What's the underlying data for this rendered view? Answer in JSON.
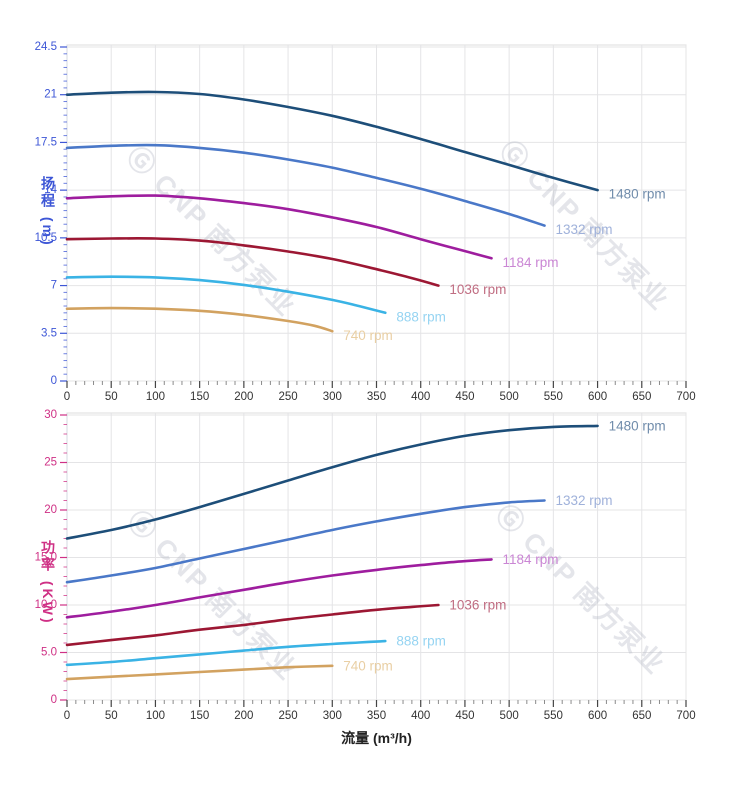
{
  "watermark": {
    "logo": "Ⓖ",
    "text": "CNP 南方泵业"
  },
  "xlabel": "流量 (m³/h)",
  "chart_data": [
    {
      "type": "line",
      "name": "head-vs-flow",
      "title": "",
      "ylabel": "扬程 (m)",
      "xlabel": "流量 (m³/h)",
      "xlim": [
        0,
        700
      ],
      "ylim": [
        0,
        24.5
      ],
      "grid": true,
      "legend_position": "labels-at-curve-ends",
      "axis_color": "#3d56d6",
      "x_tick_values": [
        0,
        50,
        100,
        150,
        200,
        250,
        300,
        350,
        400,
        450,
        500,
        550,
        600,
        650,
        700
      ],
      "x_tick_labels": [
        "0",
        "50",
        "100",
        "150",
        "200",
        "250",
        "300",
        "350",
        "400",
        "450",
        "500",
        "550",
        "600",
        "650",
        "700"
      ],
      "x_minor_step": 10,
      "y_tick_values": [
        0,
        3.5,
        7,
        10.5,
        14,
        17.5,
        21,
        24.5
      ],
      "y_tick_labels": [
        "0",
        "3.5",
        "7",
        "10.5",
        "14",
        "17.5",
        "21",
        "24.5"
      ],
      "y_minor_step": 0.5,
      "series": [
        {
          "name": "1480 rpm",
          "color": "#1d4e79",
          "label_color": "#708cab",
          "x": [
            0,
            50,
            100,
            150,
            200,
            250,
            300,
            350,
            400,
            450,
            500,
            550,
            600
          ],
          "y": [
            21.0,
            21.15,
            21.2,
            21.05,
            20.65,
            20.1,
            19.45,
            18.65,
            17.75,
            16.8,
            15.85,
            14.9,
            14.0
          ]
        },
        {
          "name": "1332 rpm",
          "color": "#4a78c8",
          "label_color": "#9fb1da",
          "x": [
            0,
            50,
            100,
            150,
            200,
            250,
            300,
            350,
            400,
            450,
            500,
            540
          ],
          "y": [
            17.1,
            17.25,
            17.3,
            17.1,
            16.75,
            16.25,
            15.65,
            14.9,
            14.1,
            13.2,
            12.25,
            11.4
          ]
        },
        {
          "name": "1184 rpm",
          "color": "#9e1d9e",
          "label_color": "#ca86d4",
          "x": [
            0,
            50,
            100,
            150,
            200,
            250,
            300,
            350,
            400,
            440,
            480
          ],
          "y": [
            13.4,
            13.55,
            13.6,
            13.4,
            13.05,
            12.6,
            12.0,
            11.3,
            10.4,
            9.7,
            9.0
          ]
        },
        {
          "name": "1036 rpm",
          "color": "#9c1733",
          "label_color": "#c06d82",
          "x": [
            0,
            50,
            100,
            150,
            200,
            250,
            300,
            350,
            390,
            420
          ],
          "y": [
            10.4,
            10.45,
            10.45,
            10.3,
            9.95,
            9.5,
            8.95,
            8.2,
            7.55,
            7.0
          ]
        },
        {
          "name": "888 rpm",
          "color": "#3ab3e5",
          "label_color": "#96d4f2",
          "x": [
            0,
            50,
            100,
            150,
            200,
            250,
            300,
            330,
            360
          ],
          "y": [
            7.6,
            7.65,
            7.6,
            7.4,
            7.05,
            6.55,
            5.95,
            5.5,
            5.0
          ]
        },
        {
          "name": "740 rpm",
          "color": "#d2a260",
          "label_color": "#e9cfa4",
          "x": [
            0,
            50,
            100,
            150,
            200,
            250,
            280,
            300
          ],
          "y": [
            5.3,
            5.35,
            5.3,
            5.15,
            4.85,
            4.4,
            4.05,
            3.65
          ]
        }
      ]
    },
    {
      "type": "line",
      "name": "power-vs-flow",
      "title": "",
      "ylabel": "功率 (KW)",
      "xlabel": "流量 (m³/h)",
      "xlim": [
        0,
        700
      ],
      "ylim": [
        0,
        30
      ],
      "grid": true,
      "legend_position": "labels-at-curve-ends",
      "axis_color": "#cf3085",
      "x_tick_values": [
        0,
        50,
        100,
        150,
        200,
        250,
        300,
        350,
        400,
        450,
        500,
        550,
        600,
        650,
        700
      ],
      "x_tick_labels": [
        "0",
        "50",
        "100",
        "150",
        "200",
        "250",
        "300",
        "350",
        "400",
        "450",
        "500",
        "550",
        "600",
        "650",
        "700"
      ],
      "x_minor_step": 10,
      "y_tick_values": [
        0,
        5,
        10,
        15,
        20,
        25,
        30
      ],
      "y_tick_labels": [
        "0",
        "5.0",
        "10.0",
        "15.0",
        "20",
        "25",
        "30"
      ],
      "y_minor_step": 1,
      "series": [
        {
          "name": "1480 rpm",
          "color": "#1d4e79",
          "label_color": "#708cab",
          "x": [
            0,
            50,
            100,
            150,
            200,
            250,
            300,
            350,
            400,
            450,
            500,
            550,
            600
          ],
          "y": [
            17.0,
            17.9,
            19.0,
            20.3,
            21.7,
            23.1,
            24.5,
            25.8,
            26.9,
            27.8,
            28.4,
            28.75,
            28.85
          ]
        },
        {
          "name": "1332 rpm",
          "color": "#4a78c8",
          "label_color": "#9fb1da",
          "x": [
            0,
            50,
            100,
            150,
            200,
            250,
            300,
            350,
            400,
            450,
            500,
            540
          ],
          "y": [
            12.4,
            13.1,
            13.9,
            14.9,
            15.9,
            16.9,
            17.9,
            18.8,
            19.6,
            20.3,
            20.8,
            21.0
          ]
        },
        {
          "name": "1184 rpm",
          "color": "#9e1d9e",
          "label_color": "#ca86d4",
          "x": [
            0,
            50,
            100,
            150,
            200,
            250,
            300,
            350,
            400,
            440,
            480
          ],
          "y": [
            8.7,
            9.3,
            10.0,
            10.8,
            11.6,
            12.4,
            13.1,
            13.7,
            14.2,
            14.55,
            14.8
          ]
        },
        {
          "name": "1036 rpm",
          "color": "#9c1733",
          "label_color": "#c06d82",
          "x": [
            0,
            50,
            100,
            150,
            200,
            250,
            300,
            350,
            390,
            420
          ],
          "y": [
            5.8,
            6.3,
            6.8,
            7.4,
            7.9,
            8.5,
            9.0,
            9.5,
            9.8,
            10.0
          ]
        },
        {
          "name": "888 rpm",
          "color": "#3ab3e5",
          "label_color": "#96d4f2",
          "x": [
            0,
            50,
            100,
            150,
            200,
            250,
            300,
            330,
            360
          ],
          "y": [
            3.7,
            4.0,
            4.4,
            4.8,
            5.2,
            5.6,
            5.9,
            6.05,
            6.2
          ]
        },
        {
          "name": "740 rpm",
          "color": "#d2a260",
          "label_color": "#e9cfa4",
          "x": [
            0,
            50,
            100,
            150,
            200,
            250,
            300
          ],
          "y": [
            2.2,
            2.45,
            2.7,
            2.95,
            3.2,
            3.45,
            3.6
          ]
        }
      ]
    }
  ]
}
